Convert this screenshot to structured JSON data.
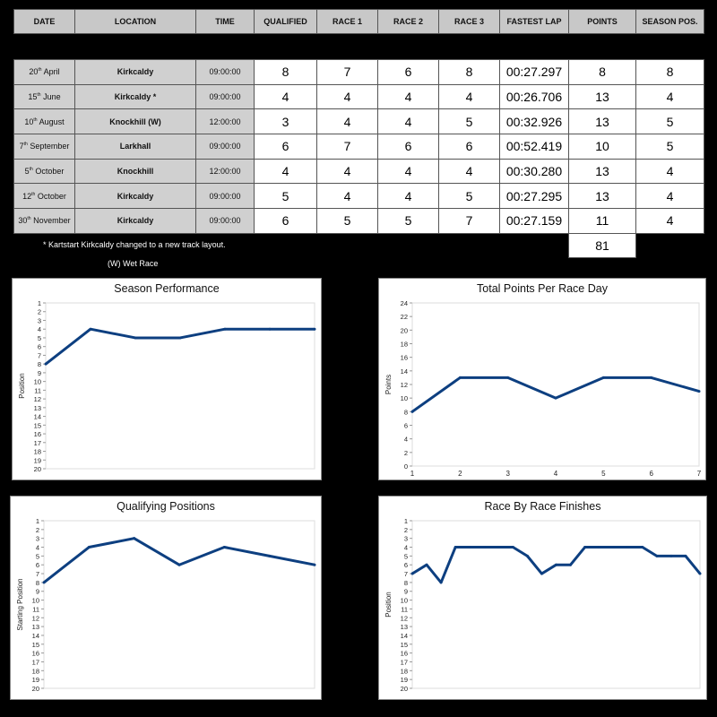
{
  "table": {
    "headers": [
      "DATE",
      "LOCATION",
      "TIME",
      "QUALIFIED",
      "RACE 1",
      "RACE 2",
      "RACE 3",
      "FASTEST LAP",
      "POINTS",
      "SEASON POS."
    ],
    "rows": [
      {
        "day": "20",
        "sup": "th",
        "month": "April",
        "location": "Kirkcaldy",
        "time": "09:00:00",
        "qualified": "8",
        "race1": "7",
        "race2": "6",
        "race3": "8",
        "fastest_lap": "00:27.297",
        "points": "8",
        "season_pos": "8"
      },
      {
        "day": "15",
        "sup": "th",
        "month": "June",
        "location": "Kirkcaldy *",
        "time": "09:00:00",
        "qualified": "4",
        "race1": "4",
        "race2": "4",
        "race3": "4",
        "fastest_lap": "00:26.706",
        "points": "13",
        "season_pos": "4"
      },
      {
        "day": "10",
        "sup": "th",
        "month": "August",
        "location": "Knockhill (W)",
        "time": "12:00:00",
        "qualified": "3",
        "race1": "4",
        "race2": "4",
        "race3": "5",
        "fastest_lap": "00:32.926",
        "points": "13",
        "season_pos": "5"
      },
      {
        "day": "7",
        "sup": "th",
        "month": "September",
        "location": "Larkhall",
        "time": "09:00:00",
        "qualified": "6",
        "race1": "7",
        "race2": "6",
        "race3": "6",
        "fastest_lap": "00:52.419",
        "points": "10",
        "season_pos": "5"
      },
      {
        "day": "5",
        "sup": "th",
        "month": "October",
        "location": "Knockhill",
        "time": "12:00:00",
        "qualified": "4",
        "race1": "4",
        "race2": "4",
        "race3": "4",
        "fastest_lap": "00:30.280",
        "points": "13",
        "season_pos": "4"
      },
      {
        "day": "12",
        "sup": "th",
        "month": "October",
        "location": "Kirkcaldy",
        "time": "09:00:00",
        "qualified": "5",
        "race1": "4",
        "race2": "4",
        "race3": "5",
        "fastest_lap": "00:27.295",
        "points": "13",
        "season_pos": "4"
      },
      {
        "day": "30",
        "sup": "th",
        "month": "November",
        "location": "Kirkcaldy",
        "time": "09:00:00",
        "qualified": "6",
        "race1": "5",
        "race2": "5",
        "race3": "7",
        "fastest_lap": "00:27.159",
        "points": "11",
        "season_pos": "4"
      }
    ],
    "total_points": "81",
    "note_layout": "* Kartstart Kirkcaldy changed to a new track layout.",
    "note_wet": "(W) Wet Race"
  },
  "line_color": "#0d3f80",
  "chart_data": [
    {
      "type": "line",
      "title": "Season Performance",
      "ylabel": "Position",
      "ylim": [
        1,
        20
      ],
      "inverted": true,
      "ystep": 1,
      "xticks": [],
      "values": [
        8,
        4,
        5,
        5,
        4,
        4,
        4
      ]
    },
    {
      "type": "line",
      "title": "Total Points Per Race Day",
      "ylabel": "Points",
      "ylim": [
        0,
        24
      ],
      "inverted": false,
      "ystep": 2,
      "xticks": [
        "1",
        "2",
        "3",
        "4",
        "5",
        "6",
        "7"
      ],
      "values": [
        8,
        13,
        13,
        10,
        13,
        13,
        11
      ]
    },
    {
      "type": "line",
      "title": "Qualifying Positions",
      "ylabel": "Starting Position",
      "ylim": [
        1,
        20
      ],
      "inverted": true,
      "ystep": 1,
      "xticks": [],
      "values": [
        8,
        4,
        3,
        6,
        4,
        5,
        6
      ]
    },
    {
      "type": "line",
      "title": "Race By Race Finishes",
      "ylabel": "Position",
      "ylim": [
        1,
        20
      ],
      "inverted": true,
      "ystep": 1,
      "xticks": [],
      "values": [
        7,
        6,
        8,
        4,
        4,
        4,
        4,
        4,
        5,
        7,
        6,
        6,
        4,
        4,
        4,
        4,
        4,
        5,
        5,
        5,
        7
      ]
    }
  ]
}
